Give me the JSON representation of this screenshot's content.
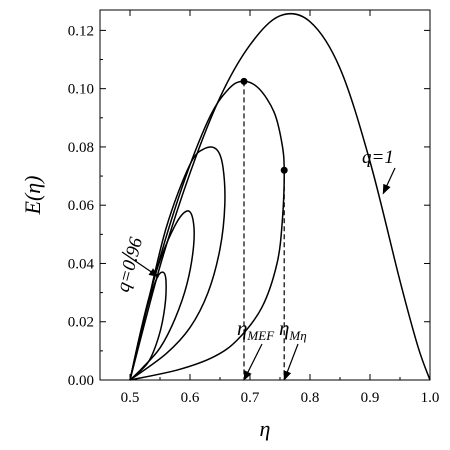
{
  "chart_data": {
    "type": "line",
    "title": "",
    "xlabel": "η",
    "ylabel": "E(η)",
    "xlim": [
      0.45,
      1.0
    ],
    "ylim": [
      0.0,
      0.127
    ],
    "xticks": [
      0.5,
      0.6,
      0.7,
      0.8,
      0.9,
      1.0
    ],
    "xtick_labels": [
      "0.5",
      "0.6",
      "0.7",
      "0.8",
      "0.9",
      "1.0"
    ],
    "yticks": [
      0.0,
      0.02,
      0.04,
      0.06,
      0.08,
      0.1,
      0.12
    ],
    "ytick_labels": [
      "0.00",
      "0.02",
      "0.04",
      "0.06",
      "0.08",
      "0.10",
      "0.12"
    ],
    "grid": false,
    "series": [
      {
        "name": "q=1",
        "points": [
          [
            0.5,
            0.0
          ],
          [
            0.55,
            0.039
          ],
          [
            0.6,
            0.071
          ],
          [
            0.65,
            0.097
          ],
          [
            0.7,
            0.115
          ],
          [
            0.75,
            0.125
          ],
          [
            0.8,
            0.123
          ],
          [
            0.85,
            0.107
          ],
          [
            0.9,
            0.075
          ],
          [
            0.95,
            0.034
          ],
          [
            0.98,
            0.0114
          ],
          [
            1.0,
            0.0
          ]
        ]
      },
      {
        "name": "",
        "points": [
          [
            0.5,
            0.0
          ],
          [
            0.53,
            0.027
          ],
          [
            0.58,
            0.062
          ],
          [
            0.63,
            0.089
          ],
          [
            0.665,
            0.1
          ],
          [
            0.69,
            0.1025
          ],
          [
            0.715,
            0.1
          ],
          [
            0.74,
            0.092
          ],
          [
            0.753,
            0.0815
          ],
          [
            0.757,
            0.072
          ],
          [
            0.754,
            0.055
          ],
          [
            0.745,
            0.04
          ],
          [
            0.72,
            0.025
          ],
          [
            0.68,
            0.014
          ],
          [
            0.64,
            0.008
          ],
          [
            0.58,
            0.0035
          ],
          [
            0.5,
            0.0
          ]
        ]
      },
      {
        "name": "",
        "points": [
          [
            0.5,
            0.0
          ],
          [
            0.525,
            0.022
          ],
          [
            0.56,
            0.052
          ],
          [
            0.6,
            0.074
          ],
          [
            0.625,
            0.0795
          ],
          [
            0.645,
            0.079
          ],
          [
            0.655,
            0.073
          ],
          [
            0.658,
            0.06
          ],
          [
            0.65,
            0.045
          ],
          [
            0.63,
            0.03
          ],
          [
            0.6,
            0.018
          ],
          [
            0.56,
            0.009
          ],
          [
            0.5,
            0.0
          ]
        ]
      },
      {
        "name": "",
        "points": [
          [
            0.5,
            0.0
          ],
          [
            0.52,
            0.018
          ],
          [
            0.545,
            0.038
          ],
          [
            0.575,
            0.053
          ],
          [
            0.595,
            0.058
          ],
          [
            0.605,
            0.055
          ],
          [
            0.606,
            0.046
          ],
          [
            0.595,
            0.033
          ],
          [
            0.575,
            0.021
          ],
          [
            0.55,
            0.011
          ],
          [
            0.52,
            0.004
          ],
          [
            0.5,
            0.0
          ]
        ]
      },
      {
        "name": "q=0.96",
        "points": [
          [
            0.5,
            0.0
          ],
          [
            0.515,
            0.014
          ],
          [
            0.53,
            0.026
          ],
          [
            0.545,
            0.035
          ],
          [
            0.555,
            0.037
          ],
          [
            0.56,
            0.034
          ],
          [
            0.558,
            0.025
          ],
          [
            0.548,
            0.015
          ],
          [
            0.53,
            0.006
          ],
          [
            0.5,
            0.0
          ]
        ]
      }
    ],
    "markers": [
      {
        "x": 0.69,
        "y": 0.1025
      },
      {
        "x": 0.757,
        "y": 0.072
      }
    ],
    "annotations": [
      {
        "text": "q=1",
        "target": [
          0.922,
          0.064
        ]
      },
      {
        "text": "q=0.96",
        "target": [
          0.547,
          0.0355
        ]
      },
      {
        "text": "η_MEF",
        "target": [
          0.69,
          0.0
        ]
      },
      {
        "text": "η_Mη",
        "target": [
          0.757,
          0.0
        ]
      }
    ]
  }
}
